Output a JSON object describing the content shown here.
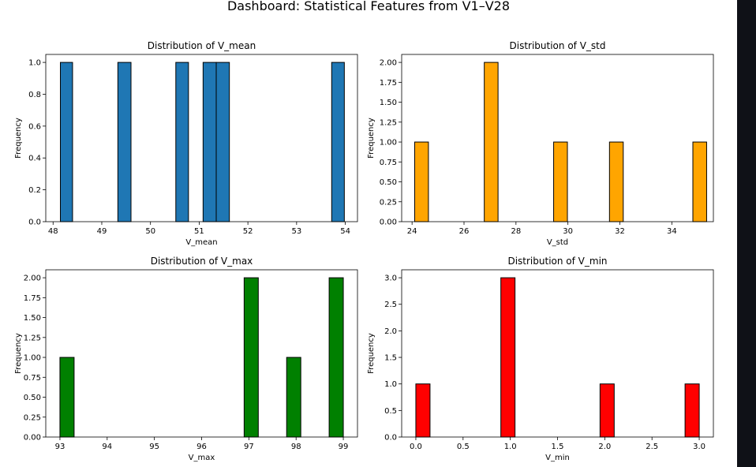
{
  "figure": {
    "suptitle": "Dashboard: Statistical Features from V1–V28"
  },
  "chart_data": [
    {
      "type": "bar",
      "title": "Distribution of V_mean",
      "xlabel": "V_mean",
      "ylabel": "Frequency",
      "color": "#1f77b4",
      "xlim": [
        47.85,
        54.25
      ],
      "ylim": [
        0,
        1.05
      ],
      "xticks": [
        "48",
        "49",
        "50",
        "51",
        "52",
        "53",
        "54"
      ],
      "yticks": [
        "0.0",
        "0.2",
        "0.4",
        "0.6",
        "0.8",
        "1.0"
      ],
      "bins": [
        {
          "x0": 48.15,
          "x1": 48.4,
          "count": 1
        },
        {
          "x0": 49.33,
          "x1": 49.6,
          "count": 1
        },
        {
          "x0": 50.52,
          "x1": 50.78,
          "count": 1
        },
        {
          "x0": 51.08,
          "x1": 51.35,
          "count": 1
        },
        {
          "x0": 51.35,
          "x1": 51.62,
          "count": 1
        },
        {
          "x0": 53.72,
          "x1": 53.98,
          "count": 1
        }
      ]
    },
    {
      "type": "bar",
      "title": "Distribution of V_std",
      "xlabel": "V_std",
      "ylabel": "Frequency",
      "color": "#ffa500",
      "xlim": [
        23.6,
        35.6
      ],
      "ylim": [
        0,
        2.1
      ],
      "xticks": [
        "24",
        "26",
        "28",
        "30",
        "32",
        "34"
      ],
      "yticks": [
        "0.00",
        "0.25",
        "0.50",
        "0.75",
        "1.00",
        "1.25",
        "1.50",
        "1.75",
        "2.00"
      ],
      "bins": [
        {
          "x0": 24.1,
          "x1": 24.63,
          "count": 1
        },
        {
          "x0": 26.78,
          "x1": 27.31,
          "count": 2
        },
        {
          "x0": 29.45,
          "x1": 29.98,
          "count": 1
        },
        {
          "x0": 31.6,
          "x1": 32.13,
          "count": 1
        },
        {
          "x0": 34.81,
          "x1": 35.34,
          "count": 1
        }
      ]
    },
    {
      "type": "bar",
      "title": "Distribution of V_max",
      "xlabel": "V_max",
      "ylabel": "Frequency",
      "color": "#008000",
      "xlim": [
        92.7,
        99.3
      ],
      "ylim": [
        0,
        2.1
      ],
      "xticks": [
        "93",
        "94",
        "95",
        "96",
        "97",
        "98",
        "99"
      ],
      "yticks": [
        "0.00",
        "0.25",
        "0.50",
        "0.75",
        "1.00",
        "1.25",
        "1.50",
        "1.75",
        "2.00"
      ],
      "bins": [
        {
          "x0": 93.0,
          "x1": 93.3,
          "count": 1
        },
        {
          "x0": 96.9,
          "x1": 97.2,
          "count": 2
        },
        {
          "x0": 97.8,
          "x1": 98.1,
          "count": 1
        },
        {
          "x0": 98.7,
          "x1": 99.0,
          "count": 2
        }
      ]
    },
    {
      "type": "bar",
      "title": "Distribution of V_min",
      "xlabel": "V_min",
      "ylabel": "Frequency",
      "color": "#ff0000",
      "xlim": [
        -0.15,
        3.15
      ],
      "ylim": [
        0,
        3.15
      ],
      "xticks": [
        "0.0",
        "0.5",
        "1.0",
        "1.5",
        "2.0",
        "2.5",
        "3.0"
      ],
      "yticks": [
        "0.0",
        "0.5",
        "1.0",
        "1.5",
        "2.0",
        "2.5",
        "3.0"
      ],
      "bins": [
        {
          "x0": 0.0,
          "x1": 0.15,
          "count": 1
        },
        {
          "x0": 0.9,
          "x1": 1.05,
          "count": 3
        },
        {
          "x0": 1.95,
          "x1": 2.1,
          "count": 1
        },
        {
          "x0": 2.85,
          "x1": 3.0,
          "count": 1
        }
      ]
    }
  ]
}
